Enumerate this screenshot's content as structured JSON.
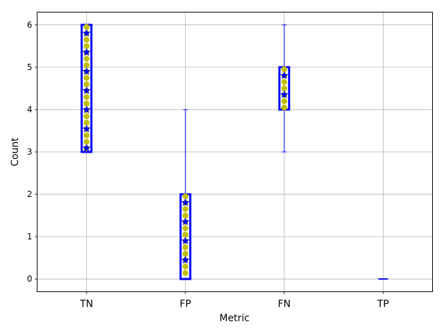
{
  "chart_data": {
    "type": "box",
    "title": "",
    "xlabel": "Metric",
    "ylabel": "Count",
    "categories": [
      "TN",
      "FP",
      "FN",
      "TP"
    ],
    "ylim": [
      -0.3,
      6.3
    ],
    "yticks": [
      0,
      1,
      2,
      3,
      4,
      5,
      6
    ],
    "grid": true,
    "boxes": [
      {
        "category": "TN",
        "min": 3,
        "q1": 3,
        "median": 6,
        "q3": 6,
        "max": 6
      },
      {
        "category": "FP",
        "min": 0,
        "q1": 0,
        "median": 2,
        "q3": 2,
        "max": 4
      },
      {
        "category": "FN",
        "min": 3,
        "q1": 4,
        "median": 5,
        "q3": 5,
        "max": 6
      },
      {
        "category": "TP",
        "min": 0,
        "q1": 0,
        "median": 0,
        "q3": 0,
        "max": 0
      }
    ],
    "colors": {
      "box_edge": "#0000ff",
      "whisker": "#0000ff",
      "marker_fill": "#bfbf00",
      "star_marker": "#0000ff",
      "grid": "#b0b0b0"
    }
  }
}
